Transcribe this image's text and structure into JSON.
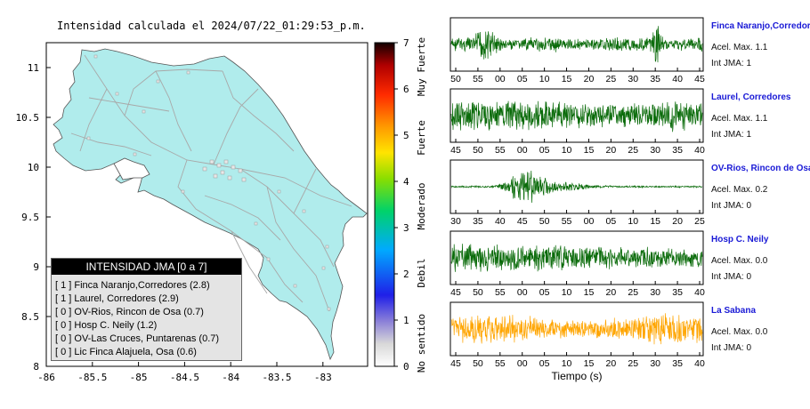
{
  "title": "Intensidad calculada el 2024/07/22_01:29:53_p.m.",
  "map": {
    "y_ticks": [
      "8",
      "8.5",
      "9",
      "9.5",
      "10",
      "10.5",
      "11"
    ],
    "x_ticks": [
      "-86",
      "-85.5",
      "-85",
      "-84.5",
      "-84",
      "-83.5",
      "-83"
    ]
  },
  "scale": {
    "ticks": [
      "0",
      "1",
      "2",
      "3",
      "4",
      "5",
      "6",
      "7"
    ],
    "labels": [
      "No sentido",
      "Debil",
      "Moderado",
      "Fuerte",
      "Muy Fuerte"
    ]
  },
  "legend": {
    "title": "INTENSIDAD JMA [0 a 7]",
    "items": [
      "[ 1 ]  Finca Naranjo,Corredores (2.8)",
      "[ 1 ]  Laurel, Corredores (2.9)",
      "[ 0 ]  OV-Rios, Rincon de Osa (0.7)",
      "[ 0 ]  Hosp C. Neily (1.2)",
      "[ 0 ]  OV-Las Cruces, Puntarenas (0.7)",
      "[ 0 ]  Lic Finca Alajuela, Osa (0.6)"
    ]
  },
  "stations": [
    {
      "name": "Finca Naranjo,Corredores",
      "acel": "Acel. Max. 1.1",
      "int": "Int JMA: 1",
      "ticks": [
        "50",
        "55",
        "00",
        "05",
        "10",
        "15",
        "20",
        "25",
        "30",
        "35",
        "40",
        "45"
      ],
      "color": "#0a6b0a"
    },
    {
      "name": "Laurel, Corredores",
      "acel": "Acel. Max. 1.1",
      "int": "Int JMA: 1",
      "ticks": [
        "45",
        "50",
        "55",
        "00",
        "05",
        "10",
        "15",
        "20",
        "25",
        "30",
        "35",
        "40"
      ],
      "color": "#0a6b0a"
    },
    {
      "name": "OV-Rios, Rincon de Osa",
      "acel": "Acel. Max. 0.2",
      "int": "Int JMA: 0",
      "ticks": [
        "30",
        "35",
        "40",
        "45",
        "50",
        "55",
        "00",
        "05",
        "10",
        "15",
        "20",
        "25"
      ],
      "color": "#0a6b0a"
    },
    {
      "name": "Hosp C. Neily",
      "acel": "Acel. Max. 0.0",
      "int": "Int JMA: 0",
      "ticks": [
        "45",
        "50",
        "55",
        "00",
        "05",
        "10",
        "15",
        "20",
        "25",
        "30",
        "35",
        "40"
      ],
      "color": "#0a6b0a"
    },
    {
      "name": "La Sabana",
      "acel": "Acel. Max. 0.0",
      "int": "Int JMA: 0",
      "ticks": [
        "45",
        "50",
        "55",
        "00",
        "05",
        "10",
        "15",
        "20",
        "25",
        "30",
        "35",
        "40"
      ],
      "color": "#ffa500"
    }
  ],
  "xlabel": "Tiempo (s)",
  "chart_data": {
    "type": "line",
    "xlabel": "Tiempo (s)",
    "series": [
      {
        "name": "Finca Naranjo,Corredores",
        "max_accel": 1.1,
        "jma_intensity": 1
      },
      {
        "name": "Laurel, Corredores",
        "max_accel": 1.1,
        "jma_intensity": 1
      },
      {
        "name": "OV-Rios, Rincon de Osa",
        "max_accel": 0.2,
        "jma_intensity": 0
      },
      {
        "name": "Hosp C. Neily",
        "max_accel": 0.0,
        "jma_intensity": 0
      },
      {
        "name": "La Sabana",
        "max_accel": 0.0,
        "jma_intensity": 0
      }
    ],
    "intensity_scale": [
      0,
      7
    ]
  }
}
